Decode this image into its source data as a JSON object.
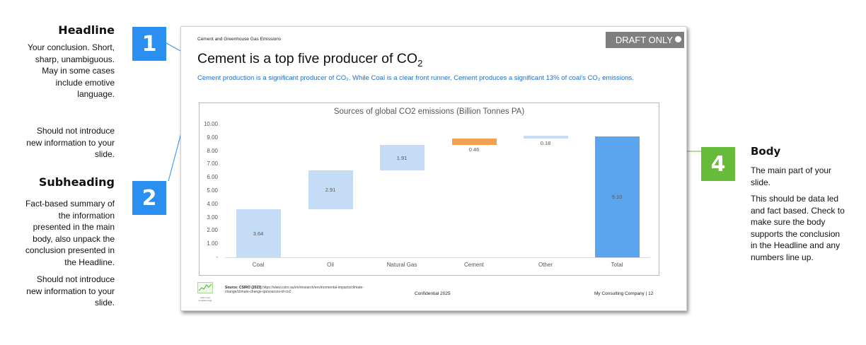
{
  "annotations": {
    "headline": {
      "title": "Headline",
      "lines": [
        "Your conclusion. Short,",
        "sharp, unambiguous.",
        "May in some cases",
        "include emotive",
        "language."
      ],
      "note": [
        "Should not introduce",
        "new information to your",
        "slide."
      ]
    },
    "subheading": {
      "title": "Subheading",
      "lines": [
        "Fact-based summary of",
        "the information",
        "presented in the main",
        "body, also unpack the",
        "conclusion presented in",
        "the Headline."
      ],
      "note": [
        "Should not introduce",
        "new information to your",
        "slide."
      ]
    },
    "body": {
      "title": "Body",
      "lines": [
        "The main part of your",
        "slide."
      ],
      "note": [
        "This should be data led",
        "and fact based. Check to",
        "make sure the body",
        "supports the conclusion",
        "in the Headline and any",
        "numbers line up."
      ]
    },
    "badges": {
      "one": "1",
      "two": "2",
      "four": "4"
    }
  },
  "slide": {
    "topic": "Cement and Greenhouse Gas Emissions",
    "draft_label": "DRAFT ONLY",
    "headline": "Cement is a top five producer of CO",
    "headline_sub": "2",
    "subheading": "Cement production is a significant producer of CO₂. While Coal is a clear front runner, Cement produces a significant 13% of coal's CO₂ emissions.",
    "footer": {
      "source_label": "Source: CSIRO (2023)",
      "source_url": "https://www.csiro.au/en/research/environmental-impacts/climate-change/climate-change-qa/sources-of-co2",
      "confidential": "Confidential 2025",
      "company": "My Consulting Company | 12",
      "logo_text": [
        "Insert your",
        "company logo"
      ]
    }
  },
  "colors": {
    "badge": "#2a8ff0",
    "badge_body": "#66bb3a",
    "chart_border": "#9bd17a",
    "bar_light": "#c5dcf6",
    "bar_cement": "#f4a04f",
    "bar_total": "#5aa5ee",
    "subheading": "#1f6fc8",
    "draft": "#7f7f7f"
  },
  "chart_data": {
    "type": "bar",
    "subtype": "waterfall",
    "title": "Sources of global CO2 emissions (Billion Tonnes PA)",
    "categories": [
      "Coal",
      "Oil",
      "Natural Gas",
      "Cement",
      "Other",
      "Total"
    ],
    "values": [
      3.64,
      2.91,
      1.91,
      0.46,
      0.18,
      9.1
    ],
    "value_labels": [
      "3.64",
      "2.91",
      "1.91",
      "0.46",
      "0.18",
      "9.10"
    ],
    "y_ticks": [
      "-",
      "1.00",
      "2.00",
      "3.00",
      "4.00",
      "5.00",
      "6.00",
      "7.00",
      "8.00",
      "9.00",
      "10.00"
    ],
    "ylim": [
      0,
      10
    ],
    "grid": false,
    "legend": "none"
  }
}
